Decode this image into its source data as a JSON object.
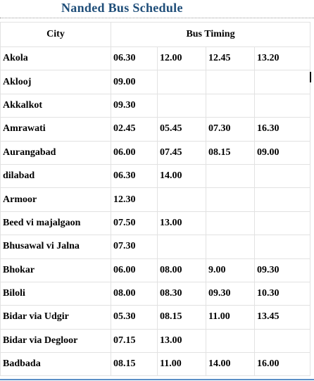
{
  "title": "Nanded Bus Schedule",
  "headers": {
    "city": "City",
    "timing": "Bus Timing"
  },
  "rows": [
    {
      "city": "Akola",
      "times": [
        "06.30",
        "12.00",
        "12.45",
        "13.20"
      ]
    },
    {
      "city": "Aklooj",
      "times": [
        "09.00",
        "",
        "",
        ""
      ]
    },
    {
      "city": "Akkalkot",
      "times": [
        "09.30",
        "",
        "",
        ""
      ]
    },
    {
      "city": "Amrawati",
      "times": [
        "02.45",
        "05.45",
        "07.30",
        "16.30"
      ]
    },
    {
      "city": "Aurangabad",
      "times": [
        "06.00",
        "07.45",
        "08.15",
        "09.00"
      ]
    },
    {
      "city": "dilabad",
      "times": [
        "06.30",
        "14.00",
        "",
        ""
      ]
    },
    {
      "city": "Armoor",
      "times": [
        "12.30",
        "",
        "",
        ""
      ]
    },
    {
      "city": "Beed vi majalgaon",
      "times": [
        "07.50",
        "13.00",
        "",
        ""
      ]
    },
    {
      "city": "Bhusawal vi Jalna",
      "times": [
        "07.30",
        "",
        "",
        ""
      ]
    },
    {
      "city": "Bhokar",
      "times": [
        "06.00",
        "08.00",
        "9.00",
        "09.30"
      ]
    },
    {
      "city": "Biloli",
      "times": [
        "08.00",
        "08.30",
        "09.30",
        "10.30"
      ]
    },
    {
      "city": "Bidar via Udgir",
      "times": [
        "05.30",
        "08.15",
        "11.00",
        "13.45"
      ]
    },
    {
      "city": "Bidar via Degloor",
      "times": [
        "07.15",
        "13.00",
        "",
        ""
      ]
    },
    {
      "city": "Badbada",
      "times": [
        "08.15",
        "11.00",
        "14.00",
        "16.00"
      ]
    }
  ]
}
